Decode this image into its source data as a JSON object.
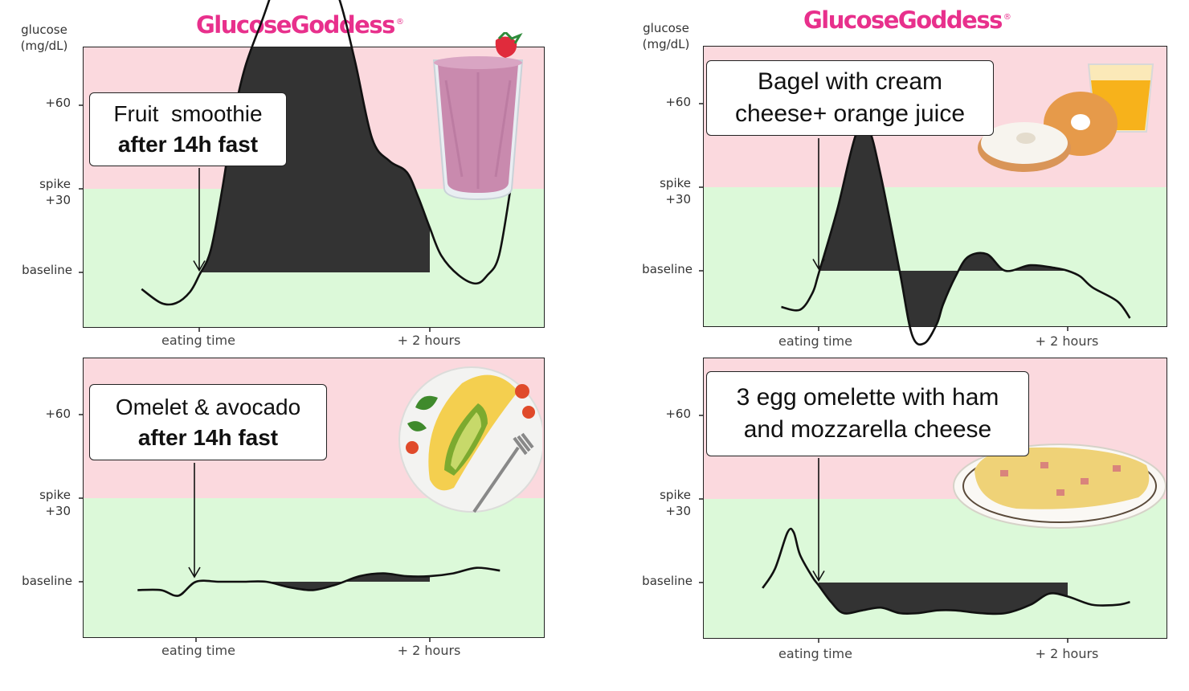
{
  "brand": "GlucoseGoddess",
  "brand_mark": "®",
  "y_axis": {
    "title_line1": "glucose",
    "title_line2": "(mg/dL)",
    "tick_60": "+60",
    "tick_spike": "spike",
    "tick_30": "+30",
    "tick_baseline": "baseline"
  },
  "x_axis": {
    "eating": "eating time",
    "two_hours": "+ 2 hours"
  },
  "colors": {
    "spike_zone": "#fbd9de",
    "safe_zone": "#dcf9d9",
    "fill": "#333333",
    "brand": "#e8308c"
  },
  "chart_data": [
    {
      "type": "area",
      "callout_line1": "Fruit  smoothie",
      "callout_line2": "after 14h fast",
      "food_icon": "smoothie-glass-icon",
      "x": [
        -0.5,
        -0.33,
        -0.2,
        -0.08,
        0,
        0.1,
        0.2,
        0.3,
        0.4,
        0.55,
        0.7,
        0.85,
        1.0,
        1.2,
        1.35,
        1.5,
        1.65,
        1.8,
        1.9,
        2.0,
        2.1,
        2.25,
        2.4,
        2.5,
        2.6,
        2.7
      ],
      "y": [
        -6,
        -11,
        -11,
        -7,
        -1,
        8,
        30,
        56,
        74,
        91,
        108,
        118,
        117,
        100,
        76,
        48,
        40,
        36,
        27,
        16,
        6,
        -1,
        -4,
        -1,
        6,
        30
      ],
      "ylim": [
        -32,
        130
      ]
    },
    {
      "type": "area",
      "callout_line1": "Bagel with cream",
      "callout_line2": "cheese+ orange juice",
      "food_icon": "bagel-and-juice-icon",
      "x": [
        -0.3,
        -0.15,
        -0.05,
        0,
        0.15,
        0.3,
        0.4,
        0.5,
        0.65,
        0.75,
        0.85,
        0.95,
        1.0,
        1.1,
        1.2,
        1.35,
        1.5,
        1.7,
        1.9,
        2.0,
        2.1,
        2.2,
        2.4,
        2.5
      ],
      "y": [
        -13,
        -14,
        -8,
        -1,
        22,
        49,
        51,
        34,
        0,
        -23,
        -26,
        -19,
        -12,
        -2,
        5,
        6,
        0,
        2,
        1,
        0,
        -2,
        -6,
        -11,
        -17
      ],
      "ylim": [
        -32,
        130
      ]
    },
    {
      "type": "area",
      "callout_line1": "Omelet & avocado",
      "callout_line2": "after 14h fast",
      "food_icon": "omelet-avocado-plate-icon",
      "x": [
        -0.5,
        -0.3,
        -0.15,
        0,
        0.2,
        0.4,
        0.6,
        0.8,
        1.0,
        1.2,
        1.4,
        1.6,
        1.8,
        2.0,
        2.2,
        2.4,
        2.6
      ],
      "y": [
        -3,
        -3,
        -5,
        0,
        0,
        0,
        0,
        -2,
        -3,
        -1,
        2,
        3,
        2,
        2,
        3,
        5,
        4
      ],
      "ylim": [
        -32,
        130
      ]
    },
    {
      "type": "area",
      "callout_line1": "3 egg omelette with ham",
      "callout_line2": "and mozzarella cheese",
      "food_icon": "ham-omelette-plate-icon",
      "x": [
        -0.45,
        -0.35,
        -0.25,
        -0.2,
        -0.15,
        -0.05,
        0,
        0.1,
        0.2,
        0.35,
        0.5,
        0.65,
        0.8,
        0.95,
        1.1,
        1.3,
        1.5,
        1.7,
        1.85,
        2.0,
        2.2,
        2.4,
        2.5
      ],
      "y": [
        -2,
        5,
        18,
        18,
        10,
        2,
        -1,
        -7,
        -11,
        -10,
        -9,
        -11,
        -11,
        -10,
        -10,
        -11,
        -11,
        -8,
        -4,
        -5,
        -8,
        -8,
        -7
      ],
      "ylim": [
        -32,
        130
      ]
    }
  ]
}
